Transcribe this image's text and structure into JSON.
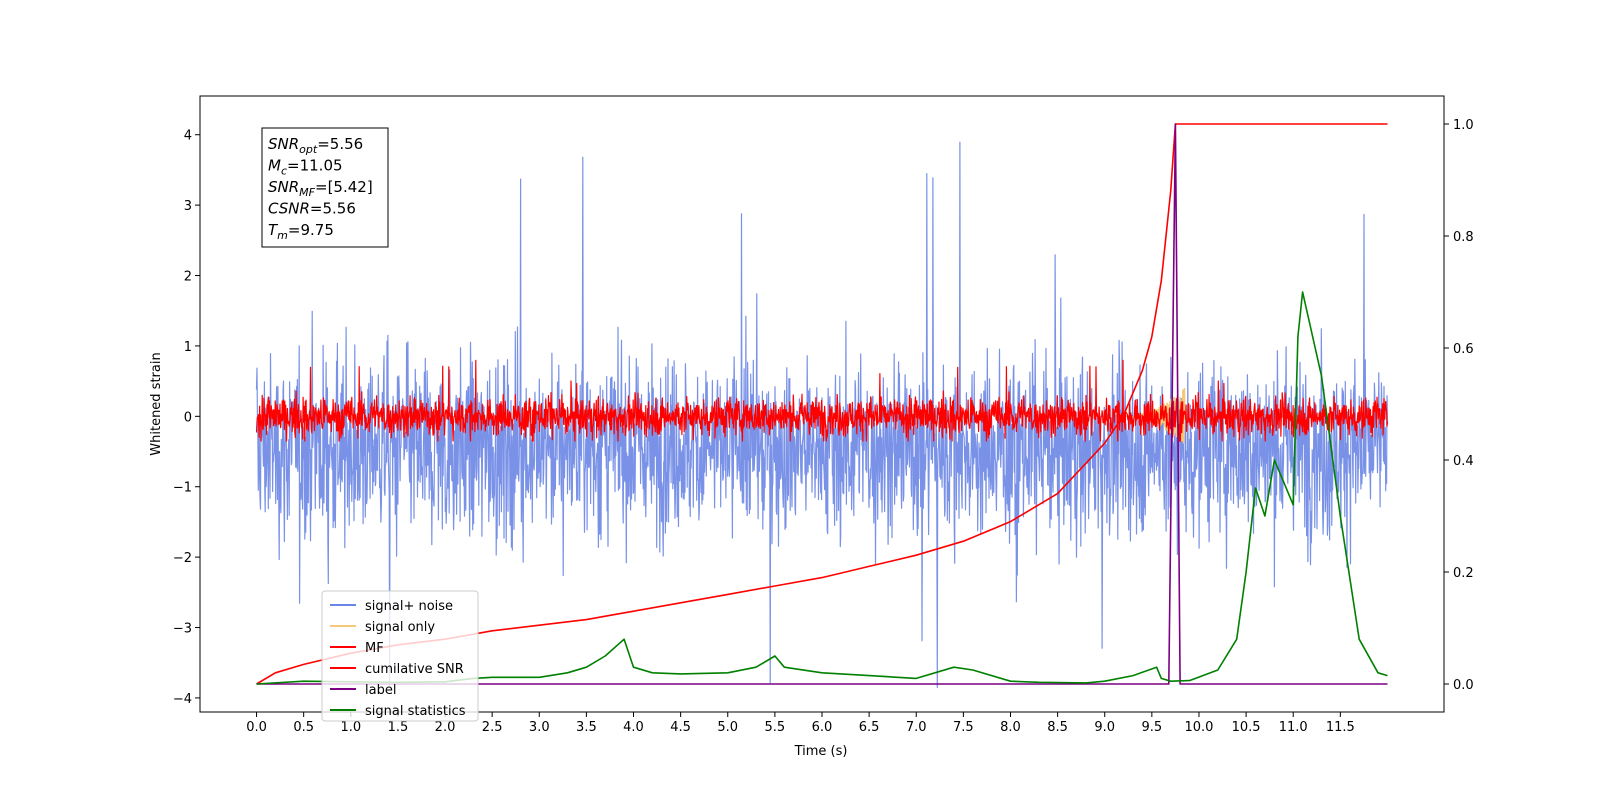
{
  "chart_data": {
    "type": "line",
    "xlabel": "Time (s)",
    "ylabel_left": "Whitened strain",
    "ylabel_right": "",
    "xlim": [
      -0.6,
      12.6
    ],
    "ylim_left": [
      -4.2,
      4.55
    ],
    "ylim_right": [
      -0.05,
      1.05
    ],
    "xticks": [
      0.0,
      0.5,
      1.0,
      1.5,
      2.0,
      2.5,
      3.0,
      3.5,
      4.0,
      4.5,
      5.0,
      5.5,
      6.0,
      6.5,
      7.0,
      7.5,
      8.0,
      8.5,
      9.0,
      9.5,
      10.0,
      10.5,
      11.0,
      11.5
    ],
    "xtick_labels": [
      "0.0",
      "0.5",
      "1.0",
      "1.5",
      "2.0",
      "2.5",
      "3.0",
      "3.5",
      "4.0",
      "4.5",
      "5.0",
      "5.5",
      "6.0",
      "6.5",
      "7.0",
      "7.5",
      "8.0",
      "8.5",
      "9.0",
      "9.5",
      "10.0",
      "10.5",
      "11.0",
      "11.5"
    ],
    "yticks_left": [
      -4,
      -3,
      -2,
      -1,
      0,
      1,
      2,
      3,
      4
    ],
    "ytick_labels_left": [
      "−4",
      "−3",
      "−2",
      "−1",
      "0",
      "1",
      "2",
      "3",
      "4"
    ],
    "yticks_right": [
      0.0,
      0.2,
      0.4,
      0.6,
      0.8,
      1.0
    ],
    "ytick_labels_right": [
      "0.0",
      "0.2",
      "0.4",
      "0.6",
      "0.8",
      "1.0"
    ],
    "grid": false,
    "legend_position": "lower-left",
    "series": [
      {
        "name": "signal+ noise",
        "axis": "left",
        "color": "#6a86e4",
        "style": "noise",
        "x_range": [
          0.0,
          12.0
        ],
        "center": -0.45,
        "band": [
          -2.0,
          1.2
        ],
        "extremes": [
          -3.85,
          4.2
        ]
      },
      {
        "name": "signal only",
        "axis": "left",
        "color": "#f5c97a",
        "style": "chirp",
        "x_range": [
          9.2,
          9.85
        ],
        "amplitude": 0.4
      },
      {
        "name": "MF",
        "axis": "left",
        "color": "#ff0000",
        "style": "noise",
        "x_range": [
          0.0,
          12.0
        ],
        "center": 0.0,
        "band": [
          -0.28,
          0.42
        ],
        "extremes": [
          -0.35,
          0.85
        ]
      },
      {
        "name": "cumilative SNR",
        "axis": "right",
        "color": "#ff0000",
        "style": "line",
        "x": [
          0.0,
          0.2,
          0.5,
          1.0,
          1.5,
          2.0,
          2.5,
          3.0,
          3.5,
          4.0,
          4.5,
          5.0,
          5.5,
          6.0,
          6.5,
          7.0,
          7.5,
          8.0,
          8.5,
          9.0,
          9.2,
          9.4,
          9.5,
          9.6,
          9.7,
          9.75,
          12.0
        ],
        "y": [
          0.0,
          0.02,
          0.035,
          0.055,
          0.07,
          0.08,
          0.095,
          0.105,
          0.115,
          0.13,
          0.145,
          0.16,
          0.175,
          0.19,
          0.21,
          0.23,
          0.255,
          0.29,
          0.34,
          0.43,
          0.48,
          0.56,
          0.62,
          0.72,
          0.88,
          1.0,
          1.0
        ]
      },
      {
        "name": "label",
        "axis": "right",
        "color": "#7b0083",
        "style": "line",
        "x": [
          0.0,
          9.68,
          9.75,
          9.8,
          12.0
        ],
        "y": [
          0.0,
          0.0,
          1.0,
          0.0,
          0.0
        ]
      },
      {
        "name": "signal statistics",
        "axis": "right",
        "color": "#008000",
        "style": "line",
        "x": [
          0.0,
          0.5,
          1.0,
          1.5,
          2.0,
          2.3,
          2.5,
          3.0,
          3.3,
          3.5,
          3.7,
          3.9,
          4.0,
          4.2,
          4.5,
          5.0,
          5.3,
          5.5,
          5.6,
          6.0,
          6.5,
          7.0,
          7.4,
          7.6,
          8.0,
          8.3,
          8.8,
          9.0,
          9.3,
          9.55,
          9.6,
          9.7,
          9.9,
          10.2,
          10.4,
          10.5,
          10.6,
          10.7,
          10.8,
          10.85,
          11.0,
          11.05,
          11.1,
          11.3,
          11.5,
          11.7,
          11.9,
          12.0
        ],
        "y": [
          0.0,
          0.005,
          0.004,
          0.003,
          0.004,
          0.01,
          0.012,
          0.012,
          0.02,
          0.03,
          0.05,
          0.08,
          0.03,
          0.02,
          0.018,
          0.02,
          0.03,
          0.05,
          0.03,
          0.02,
          0.015,
          0.01,
          0.03,
          0.025,
          0.005,
          0.003,
          0.002,
          0.005,
          0.015,
          0.03,
          0.01,
          0.005,
          0.006,
          0.025,
          0.08,
          0.2,
          0.35,
          0.3,
          0.4,
          0.38,
          0.32,
          0.62,
          0.7,
          0.55,
          0.3,
          0.08,
          0.02,
          0.015
        ]
      }
    ],
    "annotation": {
      "lines": [
        {
          "base": "SNR",
          "sub": "opt",
          "value": "=5.56"
        },
        {
          "base": "M",
          "sub": "c",
          "value": "=11.05"
        },
        {
          "base": "SNR",
          "sub": "MF",
          "value": "=[5.42]"
        },
        {
          "base": "CSNR",
          "sub": "",
          "value": "=5.56"
        },
        {
          "base": "T",
          "sub": "m",
          "value": "=9.75"
        }
      ]
    }
  }
}
